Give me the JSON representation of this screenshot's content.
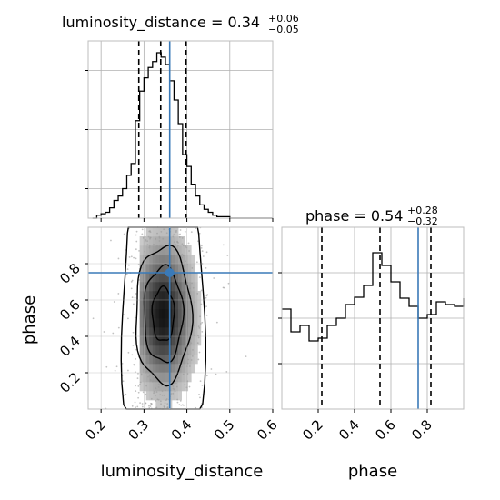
{
  "chart_data": {
    "type": "corner",
    "parameters": [
      "luminosity_distance",
      "phase"
    ],
    "truths": {
      "luminosity_distance": 0.36,
      "phase": 0.75
    },
    "colors": {
      "truth": "#3a7ab8",
      "hist": "#000000",
      "grid": "#b0b0b0",
      "density": "#000000"
    },
    "marginals": [
      {
        "parameter": "luminosity_distance",
        "title": "luminosity_distance = ",
        "median": "0.34",
        "plus": "+0.06",
        "minus": "−0.05",
        "quantiles": [
          0.288,
          0.339,
          0.398
        ],
        "bins": [
          0.18,
          0.19,
          0.2,
          0.21,
          0.22,
          0.23,
          0.24,
          0.25,
          0.26,
          0.27,
          0.28,
          0.29,
          0.3,
          0.31,
          0.32,
          0.33,
          0.34,
          0.35,
          0.36,
          0.37,
          0.38,
          0.39,
          0.4,
          0.41,
          0.42,
          0.43,
          0.44,
          0.45,
          0.46,
          0.47,
          0.48,
          0.49,
          0.5,
          0.51,
          0.52,
          0.53,
          0.54,
          0.55,
          0.56,
          0.57,
          0.58,
          0.59,
          0.6
        ],
        "counts": [
          0,
          2,
          3,
          4,
          7,
          12,
          15,
          20,
          29,
          37,
          66,
          86,
          95,
          102,
          106,
          112,
          109,
          104,
          93,
          80,
          64,
          43,
          35,
          23,
          15,
          9,
          6,
          4,
          2,
          1,
          1,
          1,
          0,
          0,
          0,
          0,
          0,
          0,
          0,
          0,
          0,
          0
        ],
        "ylim": [
          0,
          120
        ],
        "xlim": [
          0.17,
          0.6
        ],
        "xticks": [
          0.2,
          0.3,
          0.4,
          0.5,
          0.6
        ],
        "xtick_labels": [
          "0.2",
          "0.3",
          "0.4",
          "0.5",
          "0.6"
        ],
        "yticks": [
          20,
          60,
          100
        ]
      },
      {
        "parameter": "phase",
        "title": "phase = ",
        "median": "0.54",
        "plus": "+0.28",
        "minus": "−0.32",
        "quantiles": [
          0.22,
          0.54,
          0.82
        ],
        "bins": [
          0.0,
          0.05,
          0.1,
          0.15,
          0.2,
          0.25,
          0.3,
          0.35,
          0.4,
          0.45,
          0.5,
          0.55,
          0.6,
          0.65,
          0.7,
          0.75,
          0.8,
          0.85,
          0.9,
          0.95,
          1.0
        ],
        "counts": [
          110,
          85,
          92,
          75,
          78,
          92,
          100,
          115,
          123,
          136,
          172,
          158,
          140,
          122,
          113,
          100,
          104,
          118,
          115,
          113,
          122
        ],
        "ylim": [
          0,
          200
        ],
        "xlim": [
          0.0,
          1.0
        ],
        "xticks": [
          0.2,
          0.4,
          0.6,
          0.8
        ],
        "xtick_labels": [
          "0.2",
          "0.4",
          "0.6",
          "0.8"
        ],
        "yticks": [
          50,
          100,
          150
        ]
      }
    ],
    "joint": {
      "x": "luminosity_distance",
      "y": "phase",
      "xlim": [
        0.17,
        0.6
      ],
      "ylim": [
        0.0,
        1.0
      ],
      "xticks": [
        0.2,
        0.3,
        0.4,
        0.5,
        0.6
      ],
      "xtick_labels": [
        "0.2",
        "0.3",
        "0.4",
        "0.5",
        "0.6"
      ],
      "yticks": [
        0.2,
        0.4,
        0.6,
        0.8
      ],
      "ytick_labels": [
        "0.2",
        "0.4",
        "0.6",
        "0.8"
      ],
      "xlabel": "luminosity_distance",
      "ylabel": "phase",
      "density_center": [
        0.345,
        0.52
      ],
      "density_sigma": [
        0.045,
        0.26
      ]
    },
    "diag_xlabel": "phase"
  }
}
